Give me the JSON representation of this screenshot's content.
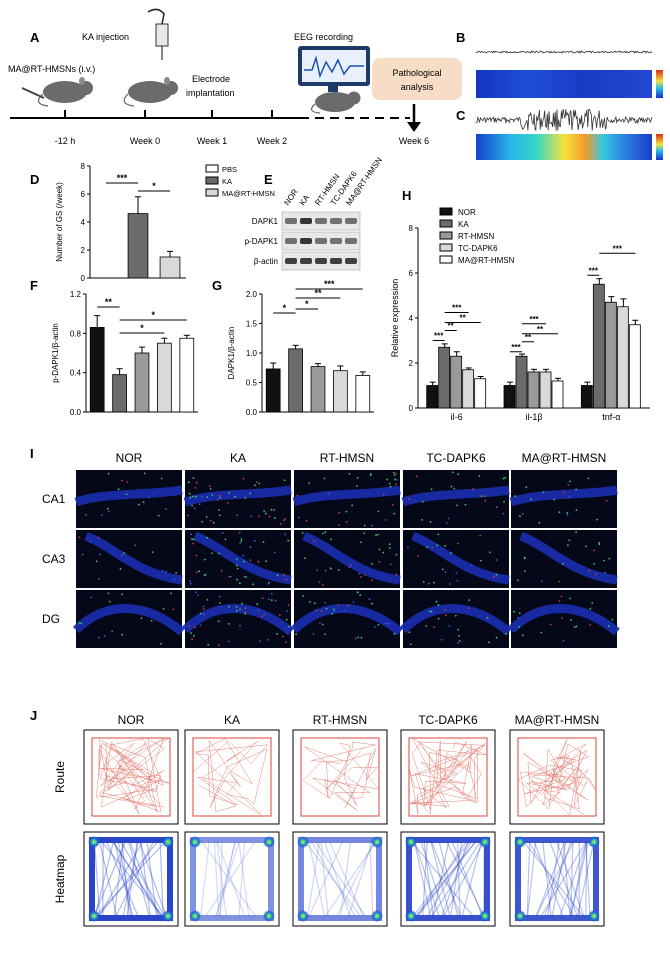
{
  "panel_letters": [
    "A",
    "B",
    "C",
    "D",
    "E",
    "F",
    "G",
    "H",
    "I",
    "J"
  ],
  "panelA": {
    "mouse_label": "MA@RT-HMSNs (i.v.)",
    "ka_label": "KA injection",
    "electrode_label": "Electrode implantation",
    "eeg_label": "EEG recording",
    "patho_label": "Pathological analysis",
    "timeline_ticks": [
      "-12 h",
      "Week 0",
      "Week 1",
      "Week 2",
      "Week 6"
    ]
  },
  "legend_3": [
    "PBS",
    "KA",
    "MA@RT-HMSN"
  ],
  "legend_5": [
    "NOR",
    "KA",
    "RT-HMSN",
    "TC-DAPK6",
    "MA@RT-HMSN"
  ],
  "panelE": {
    "lanes": [
      "NOR",
      "KA",
      "RT-HMSN",
      "TC-DAPK6",
      "MA@RT-HMSN"
    ],
    "bands": [
      "DAPK1",
      "p-DAPK1",
      "β-actin"
    ]
  },
  "groups_I": [
    "NOR",
    "KA",
    "RT-HMSN",
    "TC-DAPK6",
    "MA@RT-HMSN"
  ],
  "regions_I": [
    "CA1",
    "CA3",
    "DG"
  ],
  "groups_J": [
    "NOR",
    "KA",
    "RT-HMSN",
    "TC-DAPK6",
    "MA@RT-HMSN"
  ],
  "rows_J": [
    "Route",
    "Heatmap"
  ],
  "colors": {
    "NOR": "#111111",
    "KA": "#6b6b6b",
    "RT-HMSN": "#9a9a9a",
    "TC-DAPK6": "#d9d9d9",
    "MA@RT-HMSN": "#ffffff",
    "route": "#e0665a",
    "heat_blue": "#1e3cc8",
    "tissue_blue": "#1a2fb0"
  },
  "chart_data": [
    {
      "id": "D",
      "type": "bar",
      "ylabel": "Number of GS (/week)",
      "ylim": [
        0,
        8
      ],
      "yticks": [
        0,
        2,
        4,
        6,
        8
      ],
      "categories": [
        "PBS",
        "KA",
        "MA@RT-HMSN"
      ],
      "values": [
        0,
        4.6,
        1.5
      ],
      "errors": [
        0,
        1.2,
        0.4
      ],
      "significance": [
        [
          "PBS",
          "KA",
          "***"
        ],
        [
          "KA",
          "MA@RT-HMSN",
          "*"
        ]
      ]
    },
    {
      "id": "F",
      "type": "bar",
      "ylabel": "p-DAPK1/β-actin",
      "ylim": [
        0,
        1.2
      ],
      "yticks": [
        "0.0",
        "0.4",
        "0.8",
        "1.2"
      ],
      "categories": [
        "NOR",
        "KA",
        "RT-HMSN",
        "TC-DAPK6",
        "MA@RT-HMSN"
      ],
      "values": [
        0.86,
        0.38,
        0.6,
        0.7,
        0.75
      ],
      "errors": [
        0.12,
        0.06,
        0.06,
        0.05,
        0.03
      ],
      "significance": [
        [
          "NOR",
          "KA",
          "**"
        ],
        [
          "KA",
          "TC-DAPK6",
          "*"
        ],
        [
          "KA",
          "MA@RT-HMSN",
          "*"
        ]
      ]
    },
    {
      "id": "G",
      "type": "bar",
      "ylabel": "DAPK1/β-actin",
      "ylim": [
        0,
        2.0
      ],
      "yticks": [
        "0.0",
        "0.5",
        "1.0",
        "1.5",
        "2.0"
      ],
      "categories": [
        "NOR",
        "KA",
        "RT-HMSN",
        "TC-DAPK6",
        "MA@RT-HMSN"
      ],
      "values": [
        0.73,
        1.07,
        0.77,
        0.7,
        0.62
      ],
      "errors": [
        0.1,
        0.06,
        0.05,
        0.08,
        0.06
      ],
      "significance": [
        [
          "NOR",
          "KA",
          "*"
        ],
        [
          "KA",
          "RT-HMSN",
          "*"
        ],
        [
          "KA",
          "TC-DAPK6",
          "**"
        ],
        [
          "KA",
          "MA@RT-HMSN",
          "***"
        ]
      ]
    },
    {
      "id": "H",
      "type": "bar",
      "ylabel": "Relative expression",
      "ylim": [
        0,
        8
      ],
      "yticks": [
        0,
        2,
        4,
        6,
        8
      ],
      "categories": [
        "il-6",
        "il-1β",
        "tnf-α"
      ],
      "series": [
        {
          "name": "NOR",
          "values": [
            1.0,
            1.0,
            1.0
          ],
          "errors": [
            0.15,
            0.15,
            0.15
          ]
        },
        {
          "name": "KA",
          "values": [
            2.7,
            2.3,
            5.5
          ],
          "errors": [
            0.15,
            0.1,
            0.25
          ]
        },
        {
          "name": "RT-HMSN",
          "values": [
            2.3,
            1.6,
            4.7
          ],
          "errors": [
            0.2,
            0.12,
            0.25
          ]
        },
        {
          "name": "TC-DAPK6",
          "values": [
            1.7,
            1.6,
            4.5
          ],
          "errors": [
            0.08,
            0.12,
            0.35
          ]
        },
        {
          "name": "MA@RT-HMSN",
          "values": [
            1.3,
            1.2,
            3.7
          ],
          "errors": [
            0.1,
            0.12,
            0.2
          ]
        }
      ],
      "significance": [
        [
          "il-6",
          "NOR",
          "KA",
          "***"
        ],
        [
          "il-6",
          "KA",
          "RT-HMSN",
          "**"
        ],
        [
          "il-6",
          "KA",
          "TC-DAPK6",
          "***"
        ],
        [
          "il-6",
          "KA",
          "MA@RT-HMSN",
          "**"
        ],
        [
          "il-1β",
          "NOR",
          "KA",
          "***"
        ],
        [
          "il-1β",
          "KA",
          "RT-HMSN",
          "**"
        ],
        [
          "il-1β",
          "KA",
          "TC-DAPK6",
          "***"
        ],
        [
          "il-1β",
          "KA",
          "MA@RT-HMSN",
          "**"
        ],
        [
          "tnf-α",
          "NOR",
          "KA",
          "***"
        ],
        [
          "tnf-α",
          "KA",
          "MA@RT-HMSN",
          "***"
        ]
      ]
    }
  ]
}
